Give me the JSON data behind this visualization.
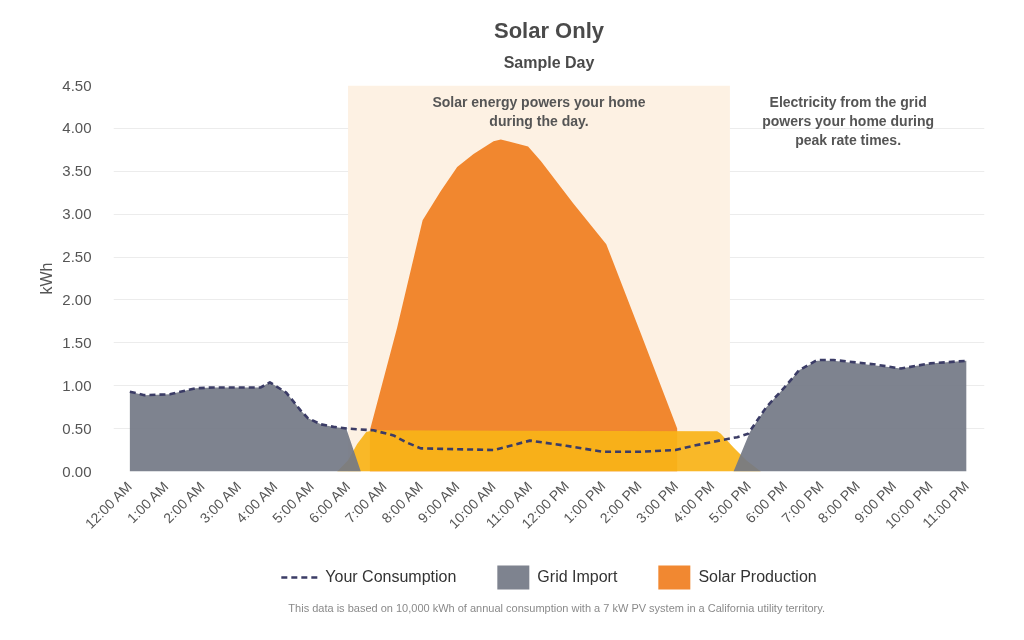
{
  "chart_data": {
    "type": "area",
    "title": "Solar Only",
    "subtitle": "Sample Day",
    "ylabel": "kWh",
    "xlim": [
      -0.45,
      23.5
    ],
    "xticks": [
      {
        "value": 0,
        "label": "12:00 AM"
      },
      {
        "value": 1,
        "label": "1:00 AM"
      },
      {
        "value": 2,
        "label": "2:00 AM"
      },
      {
        "value": 3,
        "label": "3:00 AM"
      },
      {
        "value": 4,
        "label": "4:00 AM"
      },
      {
        "value": 5,
        "label": "5:00 AM"
      },
      {
        "value": 6,
        "label": "6:00 AM"
      },
      {
        "value": 7,
        "label": "7:00 AM"
      },
      {
        "value": 8,
        "label": "8:00 AM"
      },
      {
        "value": 9,
        "label": "9:00 AM"
      },
      {
        "value": 10,
        "label": "10:00 AM"
      },
      {
        "value": 11,
        "label": "11:00 AM"
      },
      {
        "value": 12,
        "label": "12:00 PM"
      },
      {
        "value": 13,
        "label": "1:00 PM"
      },
      {
        "value": 14,
        "label": "2:00 PM"
      },
      {
        "value": 15,
        "label": "3:00 PM"
      },
      {
        "value": 16,
        "label": "4:00 PM"
      },
      {
        "value": 17,
        "label": "5:00 PM"
      },
      {
        "value": 18,
        "label": "6:00 PM"
      },
      {
        "value": 19,
        "label": "7:00 PM"
      },
      {
        "value": 20,
        "label": "8:00 PM"
      },
      {
        "value": 21,
        "label": "9:00 PM"
      },
      {
        "value": 22,
        "label": "10:00 PM"
      },
      {
        "value": 23,
        "label": "11:00 PM"
      }
    ],
    "ylim": [
      0,
      4.5
    ],
    "yticks": [
      {
        "value": 0,
        "label": "0.00"
      },
      {
        "value": 0.5,
        "label": "0.50"
      },
      {
        "value": 1,
        "label": "1.00"
      },
      {
        "value": 1.5,
        "label": "1.50"
      },
      {
        "value": 2,
        "label": "2.00"
      },
      {
        "value": 2.5,
        "label": "2.50"
      },
      {
        "value": 3,
        "label": "3.00"
      },
      {
        "value": 3.5,
        "label": "3.50"
      },
      {
        "value": 4,
        "label": "4.00"
      },
      {
        "value": 4.5,
        "label": "4.50"
      }
    ],
    "grid": "y",
    "legend": "bottom",
    "bands": [
      {
        "axis": "x",
        "from": 6,
        "to": 16.5,
        "label": "Solar energy powers your home\nduring the day.",
        "color": "#fdf1e3"
      }
    ],
    "annotations": [
      "Electricity from the grid\npowers your home during\npeak rate times.",
      "This data is based on 10,000 kWh of annual consumption with a 7 kW PV system in a California utility territory."
    ],
    "series": [
      {
        "name": "Solar Production",
        "color": "#f07e1f",
        "x": [
          6.6,
          7.35,
          8.05,
          8.55,
          9.0,
          9.45,
          10.0,
          10.2,
          10.95,
          11.3,
          12.2,
          13.1,
          14.05,
          15.05
        ],
        "values": [
          0.48,
          1.68,
          2.93,
          3.27,
          3.55,
          3.7,
          3.85,
          3.87,
          3.79,
          3.62,
          3.12,
          2.65,
          1.61,
          0.5
        ]
      },
      {
        "color": "#f8b318",
        "x": [
          5.7,
          6.0,
          6.25,
          6.5,
          6.7,
          16.15,
          16.25,
          16.6,
          16.95,
          17.35
        ],
        "values": [
          0,
          0.13,
          0.32,
          0.46,
          0.48,
          0.47,
          0.44,
          0.28,
          0.13,
          0
        ]
      },
      {
        "name": "Grid Import",
        "color": "#737886",
        "x": [
          0,
          0.4,
          1.1,
          1.8,
          2.3,
          3.6,
          3.85,
          4.3,
          4.7,
          4.9,
          5.25,
          5.6,
          5.95,
          6.35,
          16.6,
          17.05,
          17.5,
          18.0,
          18.4,
          18.9,
          19.35,
          20.45,
          21.2,
          22.0,
          23.0
        ],
        "values": [
          0.93,
          0.89,
          0.9,
          0.97,
          0.98,
          0.98,
          1.04,
          0.92,
          0.71,
          0.62,
          0.55,
          0.52,
          0.5,
          0,
          0,
          0.46,
          0.75,
          0.98,
          1.18,
          1.29,
          1.29,
          1.24,
          1.2,
          1.26,
          1.29
        ]
      },
      {
        "name": "Your Consumption",
        "type": "line",
        "color": "#3b3c66",
        "line_style": "dashed",
        "x": [
          0,
          0.4,
          1.1,
          1.8,
          2.3,
          3.6,
          3.85,
          4.3,
          4.7,
          4.9,
          5.25,
          5.6,
          6.0,
          6.7,
          7.25,
          7.6,
          8.0,
          9.0,
          10.0,
          11.0,
          12.0,
          13.0,
          14.0,
          15.0,
          15.5,
          16.2,
          16.7,
          17.0,
          17.5,
          18.0,
          18.4,
          18.9,
          19.35,
          20.45,
          21.2,
          22.0,
          23.0
        ],
        "values": [
          0.93,
          0.89,
          0.9,
          0.97,
          0.98,
          0.98,
          1.04,
          0.92,
          0.71,
          0.62,
          0.55,
          0.52,
          0.5,
          0.48,
          0.42,
          0.34,
          0.27,
          0.26,
          0.25,
          0.36,
          0.3,
          0.23,
          0.23,
          0.25,
          0.3,
          0.36,
          0.4,
          0.44,
          0.75,
          0.98,
          1.18,
          1.3,
          1.3,
          1.25,
          1.2,
          1.26,
          1.29
        ]
      }
    ]
  }
}
